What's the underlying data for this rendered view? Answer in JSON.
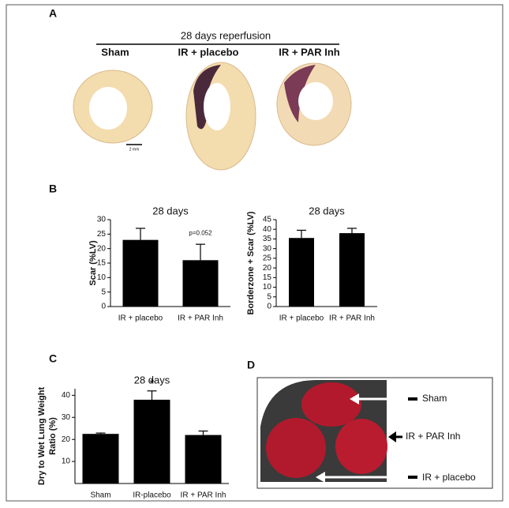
{
  "panel_labels": [
    "A",
    "B",
    "C",
    "D"
  ],
  "panel_a": {
    "header": "28 days reperfusion",
    "groups": [
      "Sham",
      "IR + placebo",
      "IR + PAR Inh"
    ],
    "scale_bar": "2 mm"
  },
  "chart_data": [
    {
      "type": "bar",
      "title": "28 days",
      "ylabel": [
        "Scar  (%LV)"
      ],
      "categories": [
        "IR + placebo",
        "IR + PAR Inh"
      ],
      "values": [
        23,
        16
      ],
      "errors": [
        4,
        5.5
      ],
      "color": "#000000",
      "ylim": [
        0,
        30
      ],
      "yticks": [
        0,
        5,
        10,
        15,
        20,
        25,
        30
      ],
      "annotation": "p=0.052"
    },
    {
      "type": "bar",
      "title": "28 days",
      "ylabel": [
        "Borderzone + Scar (%LV)"
      ],
      "categories": [
        "IR + placebo",
        "IR + PAR Inh"
      ],
      "values": [
        35.5,
        38
      ],
      "errors": [
        4,
        2.5
      ],
      "color": "#000000",
      "ylim": [
        0,
        45
      ],
      "yticks": [
        0,
        5,
        10,
        15,
        20,
        25,
        30,
        35,
        40,
        45
      ]
    },
    {
      "type": "bar",
      "title": "28 days",
      "ylabel": [
        "Dry to Wet Lung Weight",
        "Ratio (%)"
      ],
      "categories": [
        "Sham",
        "IR-placebo",
        "IR + PAR Inh"
      ],
      "values": [
        22.5,
        38,
        22
      ],
      "errors": [
        0.4,
        4,
        1.8
      ],
      "color": "#000000",
      "ylim": [
        0,
        43
      ],
      "yticks": [
        10,
        20,
        30,
        40
      ],
      "annotation": "*"
    }
  ],
  "panel_d": {
    "labels": [
      "Sham",
      "IR + PAR Inh",
      "IR + placebo"
    ]
  }
}
